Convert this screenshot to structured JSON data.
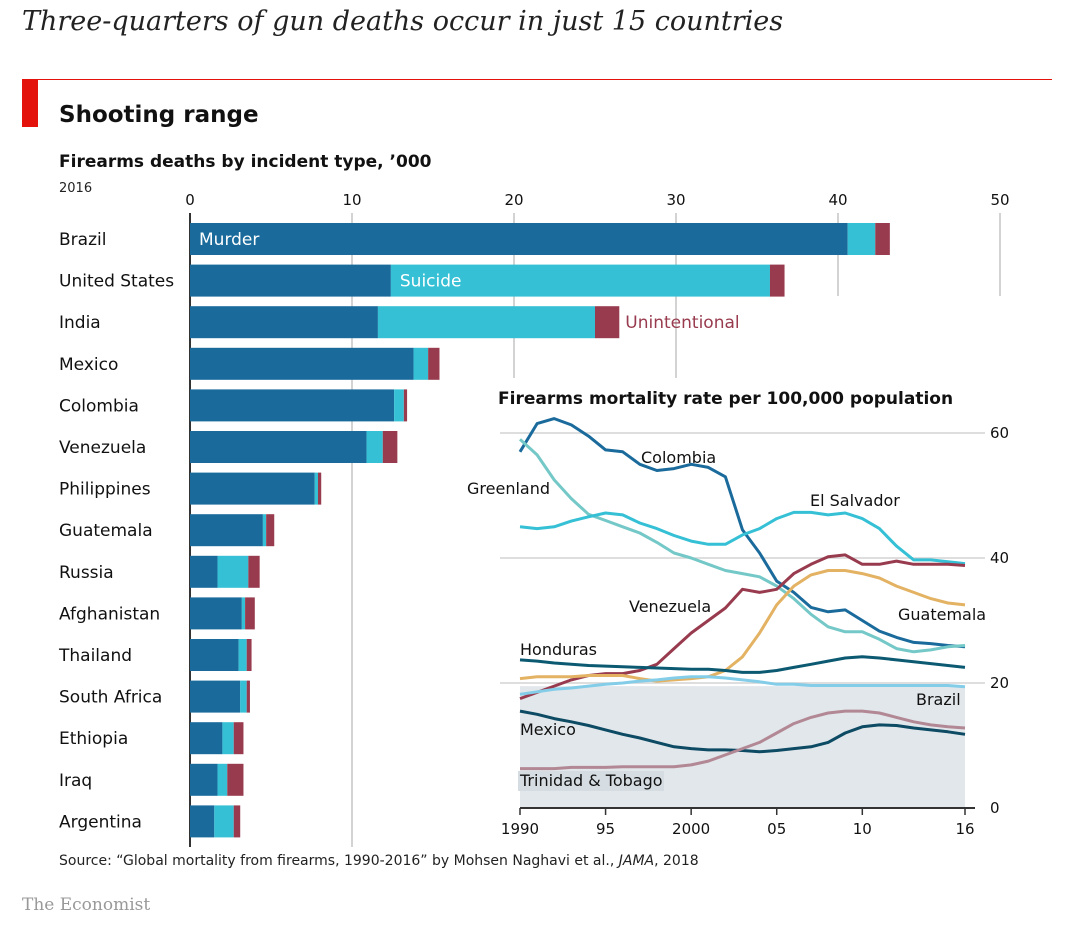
{
  "headline": "Three-quarters of gun deaths occur in just 15 countries",
  "title": "Shooting range",
  "subtitle": "Firearms deaths by incident type, ’000",
  "year_label": "2016",
  "source_prefix": "Source: “Global mortality from firearms, 1990-2016” by Mohsen Naghavi et al., ",
  "source_journal": "JAMA",
  "source_suffix": ", 2018",
  "brand": "The Economist",
  "colors": {
    "murder": "#1a6b9c",
    "suicide": "#35c0d5",
    "unintentional": "#983b4e",
    "red": "#e3120b"
  },
  "chart_data": [
    {
      "type": "bar",
      "orientation": "horizontal",
      "stacked": true,
      "title": "Firearms deaths by incident type, ’000",
      "xlim": [
        0,
        50
      ],
      "xticks": [
        0,
        10,
        20,
        30,
        40,
        50
      ],
      "categories": [
        "Brazil",
        "United States",
        "India",
        "Mexico",
        "Colombia",
        "Venezuela",
        "Philippines",
        "Guatemala",
        "Russia",
        "Afghanistan",
        "Thailand",
        "South Africa",
        "Ethiopia",
        "Iraq",
        "Argentina"
      ],
      "series": [
        {
          "name": "Murder",
          "color": "#1a6b9c",
          "values": [
            40.6,
            12.4,
            11.6,
            13.8,
            12.6,
            10.9,
            7.7,
            4.5,
            1.7,
            3.2,
            3.0,
            3.1,
            2.0,
            1.7,
            1.5
          ]
        },
        {
          "name": "Suicide",
          "color": "#35c0d5",
          "values": [
            1.7,
            23.4,
            13.4,
            0.9,
            0.6,
            1.0,
            0.2,
            0.2,
            1.9,
            0.2,
            0.5,
            0.4,
            0.7,
            0.6,
            1.2
          ]
        },
        {
          "name": "Unintentional",
          "color": "#983b4e",
          "values": [
            0.9,
            0.9,
            1.5,
            0.7,
            0.2,
            0.9,
            0.2,
            0.5,
            0.7,
            0.6,
            0.3,
            0.2,
            0.6,
            1.0,
            0.4
          ]
        }
      ]
    },
    {
      "type": "line",
      "title": "Firearms mortality rate per 100,000 population",
      "xlim": [
        1990,
        2016
      ],
      "ylim": [
        0,
        60
      ],
      "xticks": [
        1990,
        1995,
        2000,
        2005,
        2010,
        2016
      ],
      "xtick_labels": [
        "1990",
        "95",
        "2000",
        "05",
        "10",
        "16"
      ],
      "yticks": [
        0,
        20,
        40,
        60
      ],
      "x": [
        1990,
        1991,
        1992,
        1993,
        1994,
        1995,
        1996,
        1997,
        1998,
        1999,
        2000,
        2001,
        2002,
        2003,
        2004,
        2005,
        2006,
        2007,
        2008,
        2009,
        2010,
        2011,
        2012,
        2013,
        2014,
        2015,
        2016
      ],
      "series": [
        {
          "name": "Colombia",
          "color": "#1a6b9c",
          "values": [
            57.0,
            61.5,
            62.3,
            61.3,
            59.5,
            57.3,
            57.0,
            55.0,
            54.0,
            54.3,
            55.0,
            54.5,
            53.0,
            44.5,
            40.8,
            36.3,
            34.5,
            32.1,
            31.4,
            31.7,
            30.0,
            28.3,
            27.3,
            26.5,
            26.3,
            26.0,
            25.8
          ]
        },
        {
          "name": "Greenland",
          "color": "#74c8c7",
          "values": [
            59.0,
            56.5,
            52.5,
            49.5,
            47.0,
            46.0,
            45.0,
            44.0,
            42.5,
            40.8,
            40.0,
            39.0,
            38.0,
            37.5,
            37.0,
            35.5,
            33.5,
            31.0,
            29.0,
            28.2,
            28.2,
            27.0,
            25.5,
            25.0,
            25.3,
            25.8,
            26.0
          ]
        },
        {
          "name": "El Salvador",
          "color": "#35c0d5",
          "values": [
            45.0,
            44.7,
            45.0,
            45.9,
            46.6,
            47.2,
            46.9,
            45.6,
            44.7,
            43.6,
            42.7,
            42.2,
            42.2,
            43.7,
            44.7,
            46.3,
            47.3,
            47.3,
            46.9,
            47.2,
            46.3,
            44.7,
            41.9,
            39.7,
            39.7,
            39.4,
            39.1
          ]
        },
        {
          "name": "Venezuela",
          "color": "#983b4e",
          "values": [
            17.5,
            18.5,
            19.5,
            20.5,
            21.2,
            21.5,
            21.5,
            22.0,
            23.0,
            25.5,
            28.0,
            30.0,
            32.0,
            35.0,
            34.5,
            35.0,
            37.5,
            39.0,
            40.2,
            40.5,
            39.0,
            39.0,
            39.5,
            39.0,
            39.0,
            39.0,
            38.8
          ]
        },
        {
          "name": "Guatemala",
          "color": "#e3b263",
          "values": [
            20.7,
            21.0,
            21.0,
            21.0,
            21.2,
            21.2,
            21.2,
            20.7,
            20.3,
            20.5,
            20.7,
            21.0,
            22.0,
            24.2,
            28.0,
            32.5,
            35.5,
            37.3,
            38.0,
            38.0,
            37.5,
            36.8,
            35.5,
            34.5,
            33.5,
            32.8,
            32.5
          ]
        },
        {
          "name": "Honduras",
          "color": "#0c5a72",
          "values": [
            23.7,
            23.5,
            23.2,
            23.0,
            22.8,
            22.7,
            22.6,
            22.5,
            22.4,
            22.3,
            22.2,
            22.2,
            22.0,
            21.7,
            21.7,
            22.0,
            22.5,
            23.0,
            23.5,
            24.0,
            24.2,
            24.0,
            23.7,
            23.4,
            23.1,
            22.8,
            22.5
          ]
        },
        {
          "name": "Brazil",
          "color": "#83cde9",
          "values": [
            18.2,
            18.6,
            19.0,
            19.2,
            19.5,
            19.8,
            20.0,
            20.3,
            20.5,
            20.8,
            21.0,
            21.0,
            20.8,
            20.5,
            20.2,
            19.8,
            19.8,
            19.6,
            19.6,
            19.6,
            19.6,
            19.6,
            19.6,
            19.6,
            19.6,
            19.6,
            19.4
          ]
        },
        {
          "name": "Mexico",
          "color": "#0d4a63",
          "values": [
            15.5,
            15.0,
            14.3,
            13.8,
            13.2,
            12.5,
            11.8,
            11.2,
            10.5,
            9.8,
            9.5,
            9.3,
            9.3,
            9.2,
            9.0,
            9.2,
            9.5,
            9.8,
            10.5,
            12.0,
            13.0,
            13.3,
            13.2,
            12.8,
            12.5,
            12.2,
            11.8
          ]
        },
        {
          "name": "Trinidad & Tobago",
          "color": "#b28895",
          "values": [
            6.3,
            6.3,
            6.3,
            6.5,
            6.5,
            6.5,
            6.6,
            6.6,
            6.6,
            6.6,
            6.9,
            7.5,
            8.5,
            9.5,
            10.5,
            12.0,
            13.5,
            14.5,
            15.2,
            15.5,
            15.5,
            15.2,
            14.5,
            13.8,
            13.3,
            13.0,
            12.8
          ]
        }
      ],
      "background_band": [
        [
          0,
          19.5
        ]
      ]
    }
  ]
}
